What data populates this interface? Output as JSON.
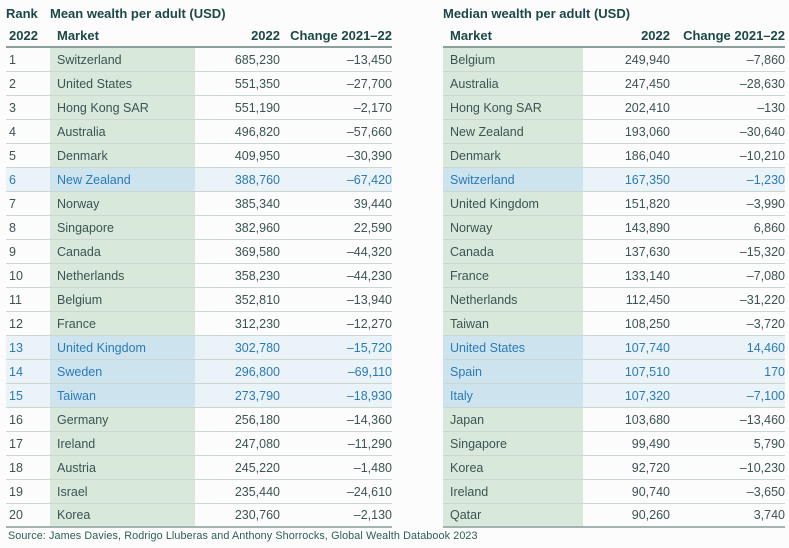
{
  "page": {
    "source_note": "Source: James Davies, Rodrigo Lluberas and Anthony Shorrocks, Global Wealth Databook 2023"
  },
  "colors": {
    "header_text": "#1c4847",
    "body_text": "#3c5453",
    "market_cell_green": "#d8e8db",
    "highlight_cell_blue": "#cde4ef",
    "highlight_row_bg": "#e9f3f8",
    "highlight_text_blue": "#2b7ab7",
    "row_line": "#ccd7d2",
    "header_rule": "#8ba09c"
  },
  "mean_table": {
    "rank_label": "Rank",
    "rank_year": "2022",
    "title": "Mean wealth per adult (USD)",
    "columns": {
      "market": "Market",
      "value": "2022",
      "change": "Change 2021–22"
    },
    "rows": [
      {
        "rank": "1",
        "market": "Switzerland",
        "value": "685,230",
        "change": "–13,450",
        "highlight": false
      },
      {
        "rank": "2",
        "market": "United States",
        "value": "551,350",
        "change": "–27,700",
        "highlight": false
      },
      {
        "rank": "3",
        "market": "Hong Kong SAR",
        "value": "551,190",
        "change": "–2,170",
        "highlight": false
      },
      {
        "rank": "4",
        "market": "Australia",
        "value": "496,820",
        "change": "–57,660",
        "highlight": false
      },
      {
        "rank": "5",
        "market": "Denmark",
        "value": "409,950",
        "change": "–30,390",
        "highlight": false
      },
      {
        "rank": "6",
        "market": "New Zealand",
        "value": "388,760",
        "change": "–67,420",
        "highlight": true
      },
      {
        "rank": "7",
        "market": "Norway",
        "value": "385,340",
        "change": "39,440",
        "highlight": false
      },
      {
        "rank": "8",
        "market": "Singapore",
        "value": "382,960",
        "change": "22,590",
        "highlight": false
      },
      {
        "rank": "9",
        "market": "Canada",
        "value": "369,580",
        "change": "–44,320",
        "highlight": false
      },
      {
        "rank": "10",
        "market": "Netherlands",
        "value": "358,230",
        "change": "–44,230",
        "highlight": false
      },
      {
        "rank": "11",
        "market": "Belgium",
        "value": "352,810",
        "change": "–13,940",
        "highlight": false
      },
      {
        "rank": "12",
        "market": "France",
        "value": "312,230",
        "change": "–12,270",
        "highlight": false
      },
      {
        "rank": "13",
        "market": "United Kingdom",
        "value": "302,780",
        "change": "–15,720",
        "highlight": true
      },
      {
        "rank": "14",
        "market": "Sweden",
        "value": "296,800",
        "change": "–69,110",
        "highlight": true
      },
      {
        "rank": "15",
        "market": "Taiwan",
        "value": "273,790",
        "change": "–18,930",
        "highlight": true
      },
      {
        "rank": "16",
        "market": "Germany",
        "value": "256,180",
        "change": "–14,360",
        "highlight": false
      },
      {
        "rank": "17",
        "market": "Ireland",
        "value": "247,080",
        "change": "–11,290",
        "highlight": false
      },
      {
        "rank": "18",
        "market": "Austria",
        "value": "245,220",
        "change": "–1,480",
        "highlight": false
      },
      {
        "rank": "19",
        "market": "Israel",
        "value": "235,440",
        "change": "–24,610",
        "highlight": false
      },
      {
        "rank": "20",
        "market": "Korea",
        "value": "230,760",
        "change": "–2,130",
        "highlight": false
      }
    ]
  },
  "median_table": {
    "title": "Median wealth per adult (USD)",
    "columns": {
      "market": "Market",
      "value": "2022",
      "change": "Change 2021–22"
    },
    "rows": [
      {
        "market": "Belgium",
        "value": "249,940",
        "change": "–7,860",
        "highlight": false
      },
      {
        "market": "Australia",
        "value": "247,450",
        "change": "–28,630",
        "highlight": false
      },
      {
        "market": "Hong Kong SAR",
        "value": "202,410",
        "change": "–130",
        "highlight": false
      },
      {
        "market": "New Zealand",
        "value": "193,060",
        "change": "–30,640",
        "highlight": false
      },
      {
        "market": "Denmark",
        "value": "186,040",
        "change": "–10,210",
        "highlight": false
      },
      {
        "market": "Switzerland",
        "value": "167,350",
        "change": "–1,230",
        "highlight": true
      },
      {
        "market": "United Kingdom",
        "value": "151,820",
        "change": "–3,990",
        "highlight": false
      },
      {
        "market": "Norway",
        "value": "143,890",
        "change": "6,860",
        "highlight": false
      },
      {
        "market": "Canada",
        "value": "137,630",
        "change": "–15,320",
        "highlight": false
      },
      {
        "market": "France",
        "value": "133,140",
        "change": "–7,080",
        "highlight": false
      },
      {
        "market": "Netherlands",
        "value": "112,450",
        "change": "–31,220",
        "highlight": false
      },
      {
        "market": "Taiwan",
        "value": "108,250",
        "change": "–3,720",
        "highlight": false
      },
      {
        "market": "United States",
        "value": "107,740",
        "change": "14,460",
        "highlight": true
      },
      {
        "market": "Spain",
        "value": "107,510",
        "change": "170",
        "highlight": true
      },
      {
        "market": "Italy",
        "value": "107,320",
        "change": "–7,100",
        "highlight": true
      },
      {
        "market": "Japan",
        "value": "103,680",
        "change": "–13,460",
        "highlight": false
      },
      {
        "market": "Singapore",
        "value": "99,490",
        "change": "5,790",
        "highlight": false
      },
      {
        "market": "Korea",
        "value": "92,720",
        "change": "–10,230",
        "highlight": false
      },
      {
        "market": "Ireland",
        "value": "90,740",
        "change": "–3,650",
        "highlight": false
      },
      {
        "market": "Qatar",
        "value": "90,260",
        "change": "3,740",
        "highlight": false
      }
    ]
  }
}
